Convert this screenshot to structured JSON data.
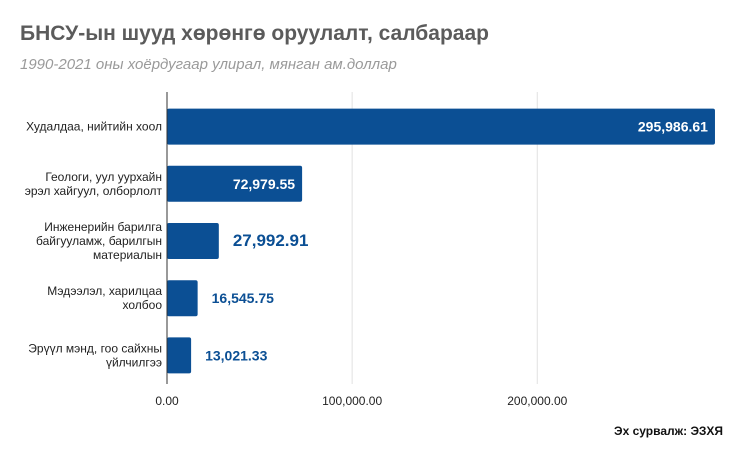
{
  "header": {
    "title": "БНСУ-ын шууд хөрөнгө оруулалт, салбараар",
    "subtitle": "1990-2021 оны хоёрдугаар улирал, мянган ам.доллар"
  },
  "footer": {
    "source": "Эх сурвалж: ЭЗХЯ"
  },
  "colors": {
    "bar": "#0b4f94",
    "grid": "#e2e2e2",
    "axis": "#333333",
    "label_inside": "#ffffff",
    "label_outside": "#0b4f94"
  },
  "chart_data": {
    "type": "bar",
    "orientation": "horizontal",
    "categories": [
      [
        "Худалдаа, нийтийн хоол"
      ],
      [
        "Геологи, уул уурхайн",
        "эрэл хайгуул, олборлолт"
      ],
      [
        "Инженерийн барилга",
        "байгууламж, барилгын",
        "материалын"
      ],
      [
        "Мэдээлэл, харилцаа",
        "холбоо"
      ],
      [
        "Эрүүл мэнд, гоо сайхны",
        "үйлчилгээ"
      ]
    ],
    "values": [
      295986.61,
      72979.55,
      27992.91,
      16545.75,
      13021.33
    ],
    "value_labels": [
      "295,986.61",
      "72,979.55",
      "27,992.91",
      "16,545.75",
      "13,021.33"
    ],
    "xticks": [
      0,
      100000,
      200000
    ],
    "xtick_labels": [
      "0.00",
      "100,000.00",
      "200,000.00"
    ],
    "xlim": [
      0,
      296000
    ],
    "grid": true
  }
}
